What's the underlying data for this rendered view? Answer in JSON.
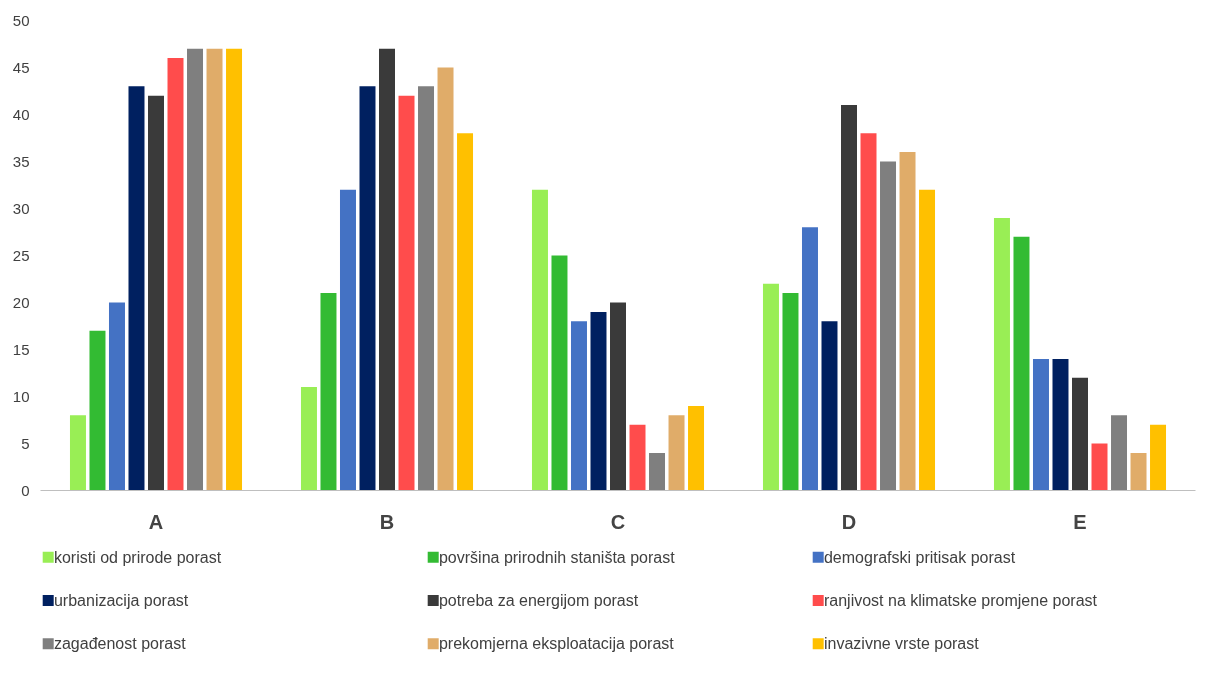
{
  "chart_data": {
    "type": "bar",
    "categories": [
      "A",
      "B",
      "C",
      "D",
      "E"
    ],
    "series": [
      {
        "name": "koristi od prirode  porast",
        "color": "#99ee55",
        "values": [
          8,
          11,
          32,
          22,
          29
        ]
      },
      {
        "name": "površina prirodnih staništa porast",
        "color": "#33bb33",
        "values": [
          17,
          21,
          25,
          21,
          27
        ]
      },
      {
        "name": "demografski pritisak porast",
        "color": "#4472c4",
        "values": [
          20,
          32,
          18,
          28,
          14
        ]
      },
      {
        "name": "urbanizacija porast",
        "color": "#002060",
        "values": [
          43,
          43,
          19,
          18,
          14
        ]
      },
      {
        "name": "potreba za energijom porast",
        "color": "#3a3a3a",
        "values": [
          42,
          47,
          20,
          41,
          12
        ]
      },
      {
        "name": "ranjivost na klimatske promjene porast",
        "color": "#ff4c4c",
        "values": [
          46,
          42,
          7,
          38,
          5
        ]
      },
      {
        "name": "zagađenost porast",
        "color": "#7f7f7f",
        "values": [
          47,
          43,
          4,
          35,
          8
        ]
      },
      {
        "name": "prekomjerna eksploatacija porast",
        "color": "#e0ac69",
        "values": [
          47,
          45,
          8,
          36,
          4
        ]
      },
      {
        "name": "invazivne vrste porast",
        "color": "#ffc000",
        "values": [
          47,
          38,
          9,
          32,
          7
        ]
      }
    ],
    "ylim": [
      0,
      50
    ],
    "yticks": [
      0,
      5,
      10,
      15,
      20,
      25,
      30,
      35,
      40,
      45,
      50
    ],
    "grid": false,
    "legend": "bottom"
  }
}
